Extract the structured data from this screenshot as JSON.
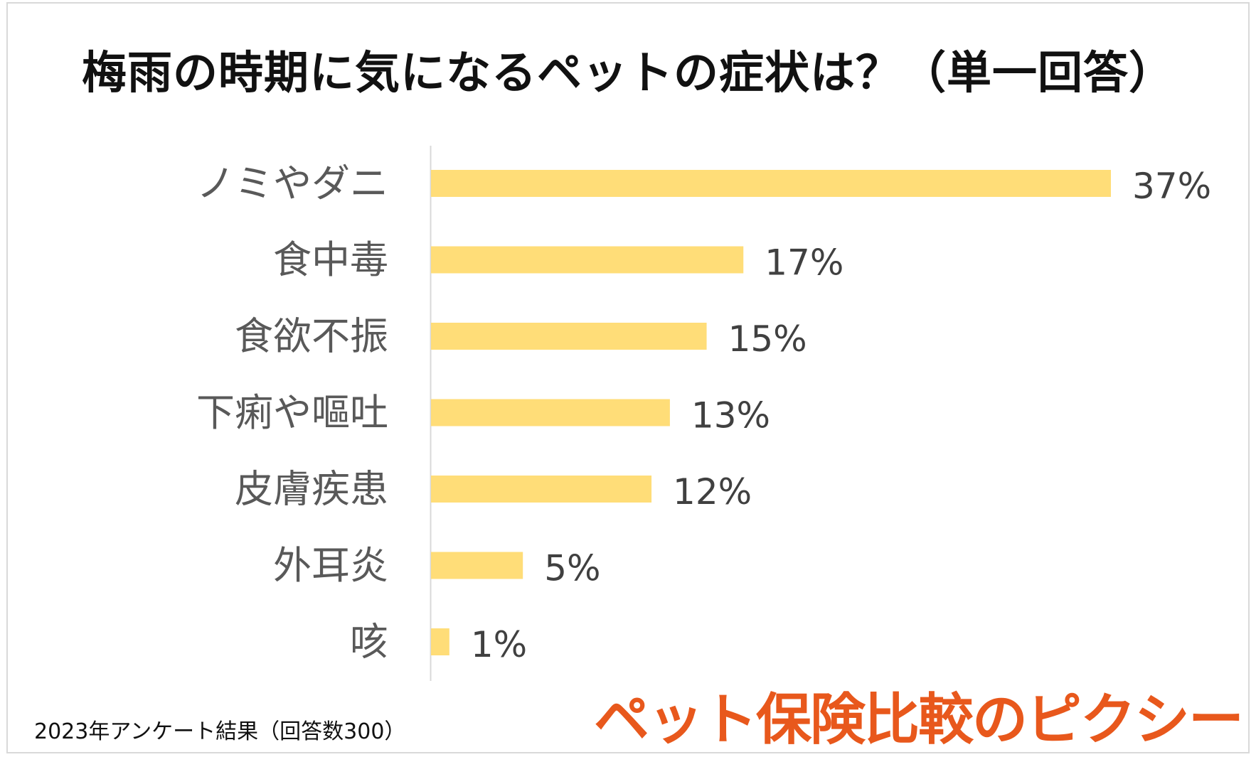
{
  "chart_data": {
    "type": "bar",
    "orientation": "horizontal",
    "title": "梅雨の時期に気になるペットの症状は？（単一回答）",
    "categories": [
      "ノミやダニ",
      "食中毒",
      "食欲不振",
      "下痢や嘔吐",
      "皮膚疾患",
      "外耳炎",
      "咳"
    ],
    "values": [
      37,
      17,
      15,
      13,
      12,
      5,
      1
    ],
    "value_labels": [
      "37%",
      "17%",
      "15%",
      "13%",
      "12%",
      "5%",
      "1%"
    ],
    "unit": "%",
    "xlim": [
      0,
      40
    ],
    "grid": false,
    "legend": "none",
    "bar_color": "#FFDD78",
    "axis_color": "#d9d9d9"
  },
  "footnote": "2023年アンケート結果（回答数300）",
  "brand": {
    "text": "ペット保険比較のピクシー",
    "color": "#E8581C"
  }
}
